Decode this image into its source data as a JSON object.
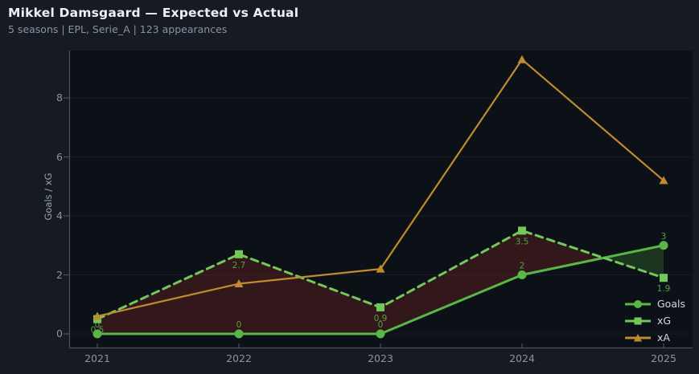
{
  "header": {
    "title": "Mikkel Damsgaard — Expected vs Actual",
    "subtitle": "5 seasons | EPL, Serie_A | 123 appearances"
  },
  "chart_data": {
    "type": "line",
    "title": "Mikkel Damsgaard — Expected vs Actual",
    "x": [
      2021,
      2022,
      2023,
      2024,
      2025
    ],
    "xticklabels": [
      "2021",
      "2022",
      "2023",
      "2024",
      "2025"
    ],
    "series": [
      {
        "name": "Goals",
        "values": [
          0,
          0,
          0,
          2,
          3
        ],
        "point_labels": [
          "0",
          "0",
          "0",
          "2",
          "3"
        ],
        "color": "#58b747",
        "line_style": "solid",
        "marker": "circle"
      },
      {
        "name": "xG",
        "values": [
          0.5,
          2.7,
          0.9,
          3.5,
          1.9
        ],
        "point_labels": [
          "0.5",
          "2.7",
          "0.9",
          "3.5",
          "1.9"
        ],
        "color": "#72c95a",
        "line_style": "dashed",
        "marker": "square"
      },
      {
        "name": "xA",
        "values": [
          0.6,
          1.7,
          2.2,
          9.3,
          5.2
        ],
        "point_labels": [],
        "color": "#c08a2e",
        "line_style": "solid",
        "marker": "triangle"
      }
    ],
    "fill_between": {
      "a": "Goals",
      "b": "xG",
      "color_when_b_above": "rgba(190,55,45,0.22)",
      "color_when_a_above": "rgba(95,205,75,0.20)"
    },
    "ylabel": "Goals / xG",
    "yticks": [
      0,
      2,
      4,
      6,
      8
    ],
    "ylim": [
      -0.46,
      9.6
    ],
    "grid": "horizontal-faint",
    "legend_position": "lower right",
    "point_label_color": "#54a044"
  },
  "colors": {
    "figure_bg": "#151a23",
    "plot_bg": "#0c1017",
    "spine": "#4b515b",
    "gridline": "rgba(255,255,255,0.045)",
    "tick_label": "#8a93a0",
    "title": "#edf0f3",
    "subtitle": "#8a93a0",
    "legend_text": "#d4d9de"
  }
}
